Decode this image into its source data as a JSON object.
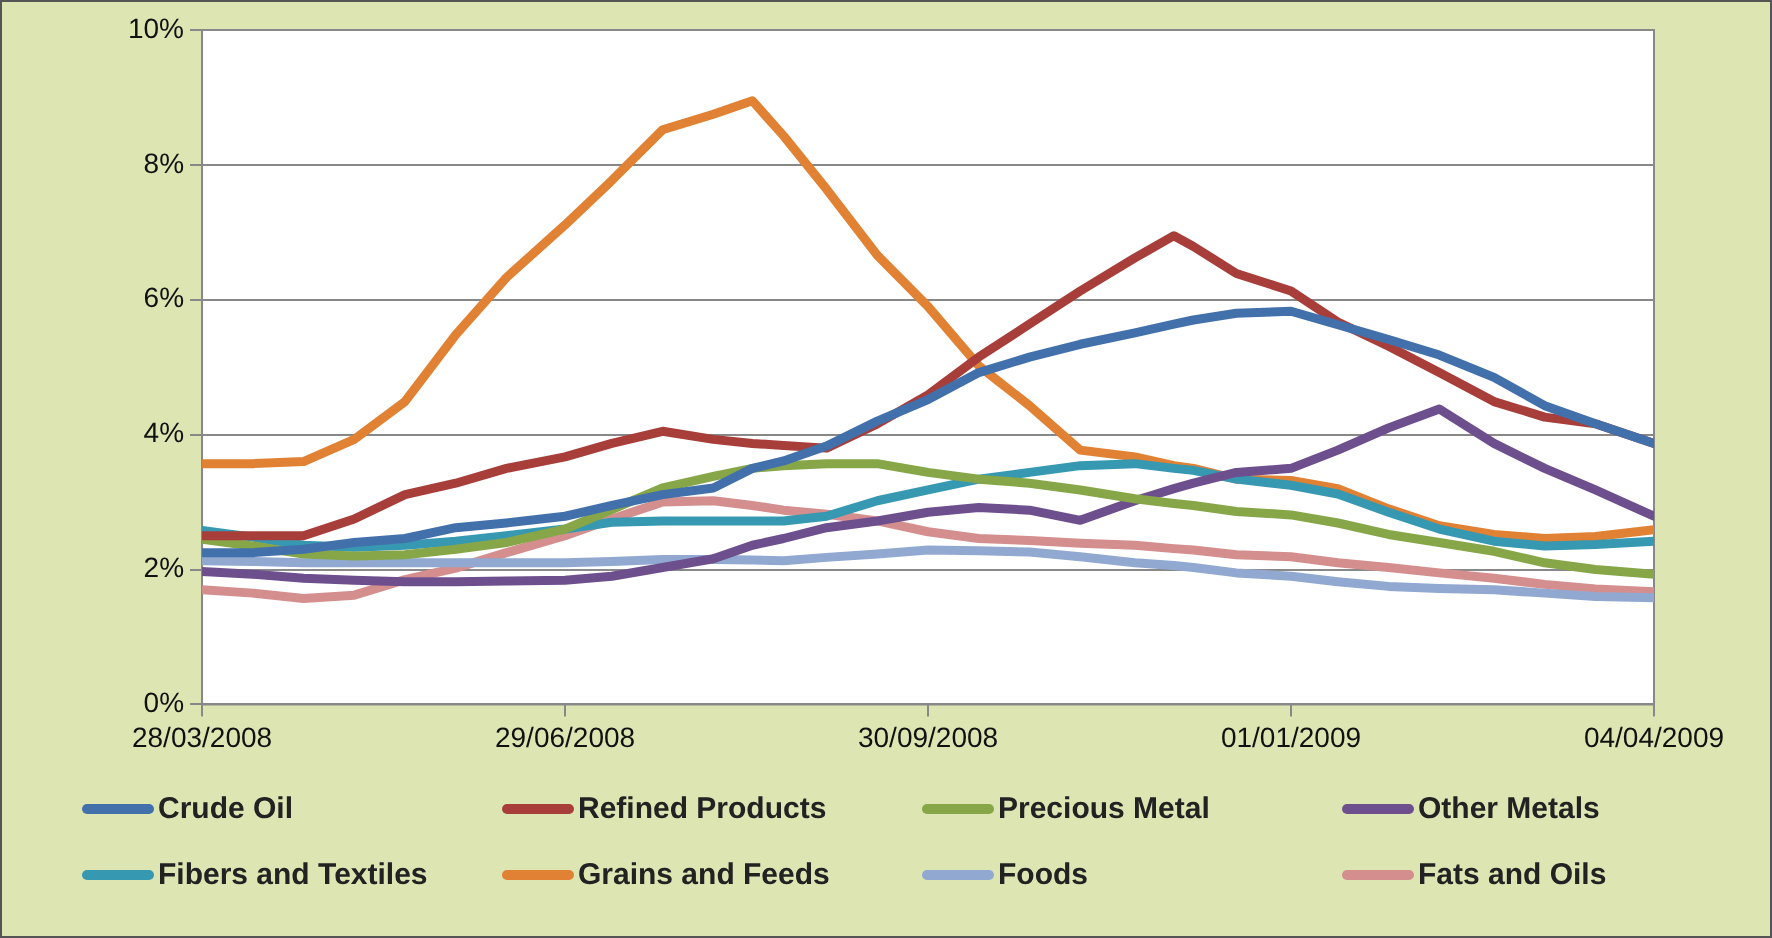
{
  "chart_data": {
    "type": "line",
    "x": [
      "2008-03-28",
      "2008-04-10",
      "2008-04-23",
      "2008-05-06",
      "2008-05-19",
      "2008-06-01",
      "2008-06-14",
      "2008-06-29",
      "2008-07-11",
      "2008-07-24",
      "2008-08-06",
      "2008-08-16",
      "2008-08-24",
      "2008-09-04",
      "2008-09-17",
      "2008-09-30",
      "2008-10-13",
      "2008-10-26",
      "2008-11-08",
      "2008-11-22",
      "2008-12-02",
      "2008-12-07",
      "2008-12-18",
      "2009-01-01",
      "2009-01-13",
      "2009-01-26",
      "2009-02-08",
      "2009-02-22",
      "2009-03-07",
      "2009-03-20",
      "2009-04-04"
    ],
    "series": [
      {
        "name": "Crude Oil",
        "color": "#4270aa",
        "values": [
          2.25,
          2.25,
          2.3,
          2.4,
          2.46,
          2.62,
          2.69,
          2.79,
          2.95,
          3.11,
          3.21,
          3.5,
          3.61,
          3.83,
          4.2,
          4.52,
          4.92,
          5.15,
          5.34,
          5.51,
          5.64,
          5.7,
          5.8,
          5.83,
          5.63,
          5.41,
          5.18,
          4.85,
          4.43,
          4.16,
          3.87
        ]
      },
      {
        "name": "Refined Products",
        "color": "#a83e3a",
        "values": [
          2.5,
          2.5,
          2.5,
          2.75,
          3.11,
          3.28,
          3.5,
          3.67,
          3.87,
          4.05,
          3.93,
          3.87,
          3.84,
          3.8,
          4.16,
          4.59,
          5.15,
          5.64,
          6.13,
          6.62,
          6.95,
          6.79,
          6.39,
          6.13,
          5.67,
          5.31,
          4.92,
          4.49,
          4.26,
          4.16,
          3.87
        ]
      },
      {
        "name": "Precious Metal",
        "color": "#86a648",
        "values": [
          2.45,
          2.35,
          2.23,
          2.2,
          2.22,
          2.3,
          2.4,
          2.6,
          2.89,
          3.21,
          3.38,
          3.5,
          3.54,
          3.57,
          3.57,
          3.44,
          3.34,
          3.28,
          3.18,
          3.05,
          2.98,
          2.95,
          2.86,
          2.81,
          2.69,
          2.52,
          2.4,
          2.27,
          2.1,
          2.0,
          1.93
        ]
      },
      {
        "name": "Other Metals",
        "color": "#6e4f8e",
        "values": [
          1.97,
          1.93,
          1.87,
          1.84,
          1.82,
          1.82,
          1.83,
          1.84,
          1.9,
          2.03,
          2.16,
          2.36,
          2.46,
          2.62,
          2.72,
          2.85,
          2.92,
          2.88,
          2.73,
          3.02,
          3.2,
          3.28,
          3.44,
          3.5,
          3.77,
          4.1,
          4.38,
          3.87,
          3.5,
          3.18,
          2.79
        ]
      },
      {
        "name": "Fibers and Textiles",
        "color": "#3798b2",
        "values": [
          2.58,
          2.48,
          2.36,
          2.33,
          2.36,
          2.42,
          2.5,
          2.6,
          2.7,
          2.72,
          2.72,
          2.72,
          2.72,
          2.79,
          3.02,
          3.18,
          3.34,
          3.44,
          3.54,
          3.57,
          3.5,
          3.47,
          3.34,
          3.25,
          3.12,
          2.85,
          2.6,
          2.42,
          2.35,
          2.37,
          2.42
        ]
      },
      {
        "name": "Grains and Feeds",
        "color": "#e08133",
        "values": [
          3.57,
          3.57,
          3.6,
          3.93,
          4.49,
          5.48,
          6.33,
          7.11,
          7.77,
          8.52,
          8.75,
          8.95,
          8.43,
          7.64,
          6.66,
          5.9,
          5.02,
          4.43,
          3.77,
          3.67,
          3.54,
          3.5,
          3.34,
          3.32,
          3.2,
          2.9,
          2.65,
          2.52,
          2.46,
          2.49,
          2.59
        ]
      },
      {
        "name": "Foods",
        "color": "#91a9d0",
        "values": [
          2.13,
          2.12,
          2.1,
          2.1,
          2.1,
          2.1,
          2.1,
          2.1,
          2.12,
          2.15,
          2.15,
          2.14,
          2.13,
          2.18,
          2.23,
          2.29,
          2.28,
          2.26,
          2.19,
          2.1,
          2.06,
          2.03,
          1.95,
          1.9,
          1.82,
          1.75,
          1.72,
          1.7,
          1.65,
          1.6,
          1.58
        ]
      },
      {
        "name": "Fats and Oils",
        "color": "#d48e8e",
        "values": [
          1.7,
          1.65,
          1.57,
          1.62,
          1.85,
          2.02,
          2.25,
          2.5,
          2.75,
          3.0,
          3.02,
          2.95,
          2.88,
          2.82,
          2.72,
          2.56,
          2.46,
          2.43,
          2.39,
          2.36,
          2.31,
          2.29,
          2.22,
          2.19,
          2.1,
          2.03,
          1.95,
          1.87,
          1.78,
          1.71,
          1.67
        ]
      }
    ],
    "xlim": [
      "2008-03-28",
      "2009-04-04"
    ],
    "xticks": [
      {
        "value": "2008-03-28",
        "label": "28/03/2008"
      },
      {
        "value": "2008-06-29",
        "label": "29/06/2008"
      },
      {
        "value": "2008-09-30",
        "label": "30/09/2008"
      },
      {
        "value": "2009-01-01",
        "label": "01/01/2009"
      },
      {
        "value": "2009-04-04",
        "label": "04/04/2009"
      }
    ],
    "ylim": [
      0,
      10
    ],
    "yticks": [
      {
        "value": 0,
        "label": "0%"
      },
      {
        "value": 2,
        "label": "2%"
      },
      {
        "value": 4,
        "label": "4%"
      },
      {
        "value": 6,
        "label": "6%"
      },
      {
        "value": 8,
        "label": "8%"
      },
      {
        "value": 10,
        "label": "10%"
      }
    ],
    "grid": "y",
    "legend": "bottom",
    "marker": "none",
    "line_style": "solid"
  }
}
